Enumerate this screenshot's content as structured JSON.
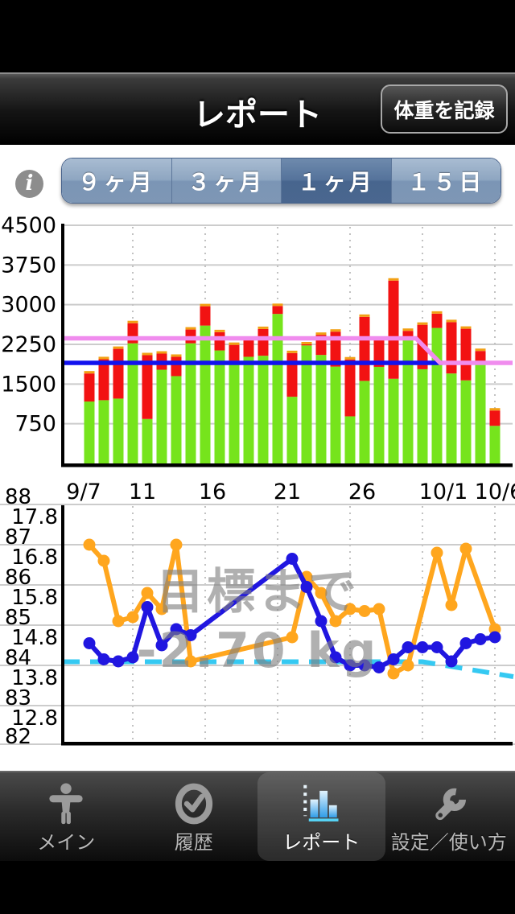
{
  "nav_bar": {
    "title": "レポート",
    "record_button_label": "体重を記録"
  },
  "toolbar": {
    "info_icon": "i",
    "segments": [
      {
        "id": "9m",
        "label": "９ヶ月",
        "selected": false
      },
      {
        "id": "3m",
        "label": "３ヶ月",
        "selected": false
      },
      {
        "id": "1m",
        "label": "１ヶ月",
        "selected": true
      },
      {
        "id": "15d",
        "label": "１５日",
        "selected": false
      }
    ]
  },
  "chart_data": [
    {
      "type": "bar",
      "name": "daily-calorie-stacked-bars",
      "stacked": true,
      "grid": "on",
      "legend": "none",
      "categories": [
        "9/8",
        "9/9",
        "9/10",
        "9/11",
        "9/12",
        "9/13",
        "9/14",
        "9/15",
        "9/16",
        "9/17",
        "9/18",
        "9/19",
        "9/20",
        "9/21",
        "9/22",
        "9/23",
        "9/24",
        "9/25",
        "9/26",
        "9/27",
        "9/28",
        "9/29",
        "9/30",
        "10/1",
        "10/2",
        "10/3",
        "10/4",
        "10/5",
        "10/6"
      ],
      "series": [
        {
          "name": "green-base",
          "color": "#76E41C",
          "values": [
            1170,
            1195,
            1225,
            2270,
            840,
            1770,
            1650,
            2270,
            2605,
            2135,
            1940,
            2015,
            2035,
            2825,
            1260,
            2230,
            2050,
            1830,
            890,
            1560,
            1825,
            1600,
            2330,
            1780,
            2560,
            1700,
            1570,
            1900,
            710
          ]
        },
        {
          "name": "red-excess",
          "color": "#F21212",
          "values": [
            530,
            775,
            940,
            380,
            1205,
            305,
            365,
            260,
            365,
            345,
            300,
            315,
            505,
            150,
            825,
            20,
            380,
            660,
            1075,
            1210,
            525,
            1855,
            175,
            840,
            270,
            970,
            975,
            225,
            290
          ]
        }
      ],
      "bar_top_cap_color": "#F2A014",
      "x_tick_labels": [
        "9/7",
        "11",
        "16",
        "21",
        "26",
        "10/1",
        "10/6"
      ],
      "y_ticks": [
        750,
        1500,
        2250,
        3000,
        3750,
        4500
      ],
      "ylim": [
        0,
        4500
      ],
      "ref_lines": [
        {
          "name": "target-line-pink",
          "color": "#F08CEE",
          "flat_value": 2365,
          "drop_to": 1895
        },
        {
          "name": "baseline-blue",
          "color": "#1111EE",
          "flat_value": 1895
        }
      ]
    },
    {
      "type": "line",
      "name": "weight-and-bodyfat-lines",
      "grid": "on",
      "legend": "none",
      "categories": [
        "9/8",
        "9/9",
        "9/10",
        "9/11",
        "9/12",
        "9/13",
        "9/14",
        "9/15",
        "9/16",
        "9/17",
        "9/18",
        "9/19",
        "9/20",
        "9/21",
        "9/22",
        "9/23",
        "9/24",
        "9/25",
        "9/26",
        "9/27",
        "9/28",
        "9/29",
        "9/30",
        "10/1",
        "10/2",
        "10/3",
        "10/4",
        "10/5",
        "10/6"
      ],
      "left_axis": {
        "ticks": [
          88,
          87,
          86,
          85,
          84,
          83,
          82
        ],
        "lim": [
          81.9,
          88.2
        ]
      },
      "inner_axis": {
        "ticks": [
          17.8,
          16.8,
          15.8,
          14.8,
          13.8,
          12.8
        ]
      },
      "series": [
        {
          "name": "weight-orange",
          "color": "#FFA61E",
          "axis": "left",
          "values": [
            87.0,
            86.6,
            85.1,
            85.2,
            85.8,
            85.4,
            87.0,
            84.1,
            null,
            null,
            null,
            null,
            null,
            null,
            84.7,
            86.2,
            85.8,
            85.1,
            85.4,
            85.35,
            85.4,
            83.8,
            84.0,
            null,
            86.8,
            85.5,
            86.9,
            null,
            84.9
          ]
        },
        {
          "name": "bodyfat-blue",
          "color": "#2016E0",
          "axis": "inner",
          "values": [
            14.85,
            14.45,
            14.4,
            14.5,
            15.75,
            14.8,
            15.2,
            15.05,
            null,
            null,
            null,
            null,
            null,
            null,
            16.95,
            16.25,
            15.4,
            14.5,
            14.3,
            14.3,
            14.25,
            14.45,
            14.75,
            14.75,
            14.75,
            14.4,
            14.85,
            14.95,
            15.0
          ]
        }
      ],
      "goal_line": {
        "name": "goal-line-cyan",
        "color": "#35C9F2",
        "style": "dashed",
        "flat_value": 84.1,
        "end_value": 83.72
      },
      "watermark": {
        "line1": "目標まで",
        "line2": "-2.70 kg",
        "color": "#9B9B9B"
      }
    }
  ],
  "tab_bar": {
    "items": [
      {
        "id": "main",
        "label": "メイン",
        "icon": "person-icon",
        "selected": false
      },
      {
        "id": "history",
        "label": "履歴",
        "icon": "clock-icon",
        "selected": false
      },
      {
        "id": "report",
        "label": "レポート",
        "icon": "bar-chart-icon",
        "selected": true
      },
      {
        "id": "settings",
        "label": "設定／使い方",
        "icon": "wrench-icon",
        "selected": false
      }
    ]
  }
}
